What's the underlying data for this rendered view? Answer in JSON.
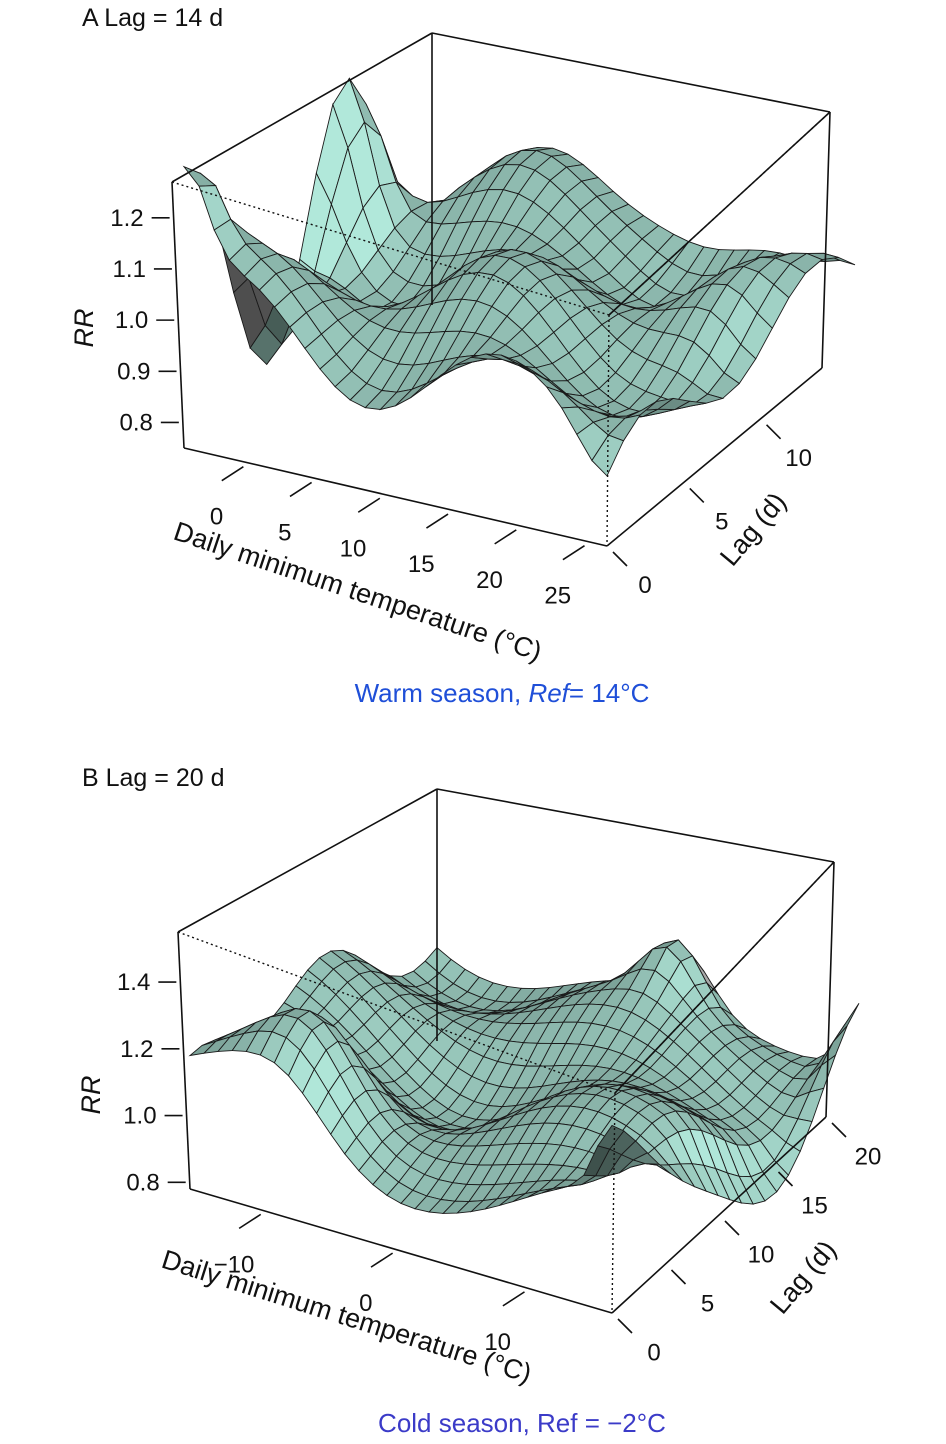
{
  "chart_data": [
    {
      "type": "surface3d",
      "panel_label": "A",
      "title": "Lag = 14 d",
      "caption_text": "Warm season, ",
      "caption_ref_label": "Ref",
      "caption_ref_value": "= 14°C",
      "caption_color": "#1f4fd8",
      "xlabel": "Daily minimum temperature (°C)",
      "ylabel": "Lag (d)",
      "zlabel": "RR",
      "xlim": [
        -4,
        27
      ],
      "ylim": [
        0,
        14
      ],
      "zlim": [
        0.75,
        1.27
      ],
      "x_ticks": [
        "0",
        "5",
        "10",
        "15",
        "20",
        "25"
      ],
      "x_tick_values": [
        0,
        5,
        10,
        15,
        20,
        25
      ],
      "y_ticks": [
        "0",
        "5",
        "10"
      ],
      "y_tick_values": [
        0,
        5,
        10
      ],
      "z_ticks": [
        "0.8",
        "0.9",
        "1.0",
        "1.1",
        "1.2"
      ],
      "z_tick_values": [
        0.8,
        0.9,
        1.0,
        1.1,
        1.2
      ],
      "surface_color": "#a9ddd0",
      "grid_nx": 28,
      "grid_ny": 15
    },
    {
      "type": "surface3d",
      "panel_label": "B",
      "title": "Lag = 20 d",
      "caption_text": "Cold season, Ref = −2°C",
      "caption_color": "#3b3bc8",
      "xlabel": "Daily minimum temperature (°C)",
      "ylabel": "Lag (d)",
      "zlabel": "RR",
      "xlim": [
        -15,
        17
      ],
      "ylim": [
        0,
        20
      ],
      "zlim": [
        0.78,
        1.55
      ],
      "x_ticks": [
        "−10",
        "0",
        "10"
      ],
      "x_tick_values": [
        -10,
        0,
        10
      ],
      "y_ticks": [
        "0",
        "5",
        "10",
        "15",
        "20"
      ],
      "y_tick_values": [
        0,
        5,
        10,
        15,
        20
      ],
      "z_ticks": [
        "0.8",
        "1.0",
        "1.2",
        "1.4"
      ],
      "z_tick_values": [
        0.8,
        1.0,
        1.2,
        1.4
      ],
      "surface_color": "#a9ddd0",
      "grid_nx": 30,
      "grid_ny": 21
    }
  ]
}
